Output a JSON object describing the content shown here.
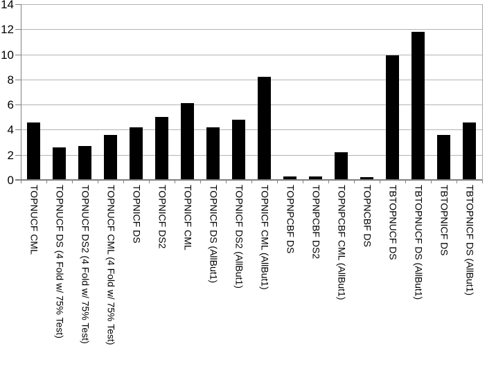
{
  "chart_data": {
    "type": "bar",
    "title": "",
    "xlabel": "",
    "ylabel": "",
    "categories": [
      "TOPNUCF CML",
      "TOPNUCF DS (4 Fold w/ 75% Test)",
      "TOPNUCF DS2 (4 Fold w/ 75% Test)",
      "TOPNUCF CML (4 Fold w/ 75% Test)",
      "TOPNICF DS",
      "TOPNICF DS2",
      "TOPNICF CML",
      "TOPNICF DS (AllBut1)",
      "TOPNICF DS2 (AllBut1)",
      "TOPNICF CML (AllBut1)",
      "TOPNPCBF DS",
      "TOPNPCBF DS2",
      "TOPNPCBF CML (AllBut1)",
      "TOPNCBF DS",
      "TBTOPNUCF DS",
      "TBTOPNUCF DS (AllBut1)",
      "TBTOPNICF DS",
      "TBTOPNICF DS (AllBut1)"
    ],
    "values": [
      4.6,
      2.6,
      2.7,
      3.6,
      4.2,
      5.0,
      6.1,
      4.2,
      4.8,
      8.2,
      0.3,
      0.3,
      2.2,
      0.2,
      9.9,
      11.8,
      3.6,
      4.6
    ],
    "ylim": [
      0,
      14
    ],
    "yticks": [
      0,
      2,
      4,
      6,
      8,
      10,
      12,
      14
    ],
    "ytick_interval": 2,
    "grid": true,
    "legend": false,
    "x_label_rotation_deg": 90,
    "colors": {
      "bar": "#000000",
      "gridline": "#b3b3b3",
      "axis": "#808080",
      "plot_border": "#a6a6a6",
      "text": "#000000",
      "background": "#ffffff"
    }
  }
}
